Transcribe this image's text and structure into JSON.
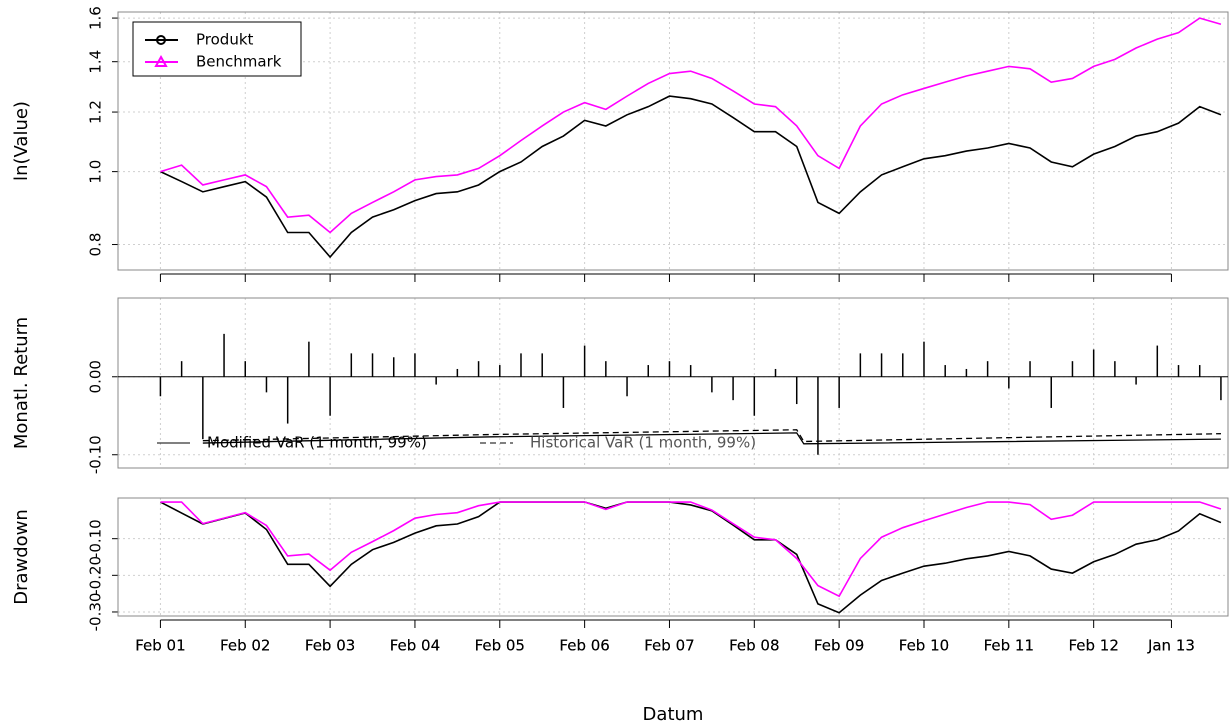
{
  "chart_data": [
    {
      "type": "line",
      "ylabel": "ln(Value)",
      "log_scale": true,
      "grid": true,
      "x": [
        "2001-02",
        "2001-05",
        "2001-08",
        "2001-11",
        "2002-02",
        "2002-05",
        "2002-08",
        "2002-11",
        "2003-02",
        "2003-05",
        "2003-08",
        "2003-11",
        "2004-02",
        "2004-05",
        "2004-08",
        "2004-11",
        "2005-02",
        "2005-05",
        "2005-08",
        "2005-11",
        "2006-02",
        "2006-05",
        "2006-08",
        "2006-11",
        "2007-02",
        "2007-05",
        "2007-08",
        "2007-11",
        "2008-02",
        "2008-05",
        "2008-08",
        "2008-11",
        "2009-02",
        "2009-05",
        "2009-08",
        "2009-11",
        "2010-02",
        "2010-05",
        "2010-08",
        "2010-11",
        "2011-02",
        "2011-05",
        "2011-08",
        "2011-11",
        "2012-02",
        "2012-05",
        "2012-08",
        "2012-11",
        "2013-02",
        "2013-05",
        "2013-08"
      ],
      "xlim": [
        "2000-08",
        "2013-09"
      ],
      "xticks": [
        {
          "value": "2001-02",
          "label": "Feb 01"
        },
        {
          "value": "2002-02",
          "label": "Feb 02"
        },
        {
          "value": "2003-02",
          "label": "Feb 03"
        },
        {
          "value": "2004-02",
          "label": "Feb 04"
        },
        {
          "value": "2005-02",
          "label": "Feb 05"
        },
        {
          "value": "2006-02",
          "label": "Feb 06"
        },
        {
          "value": "2007-02",
          "label": "Feb 07"
        },
        {
          "value": "2008-02",
          "label": "Feb 08"
        },
        {
          "value": "2009-02",
          "label": "Feb 09"
        },
        {
          "value": "2010-02",
          "label": "Feb 10"
        },
        {
          "value": "2011-02",
          "label": "Feb 11"
        },
        {
          "value": "2012-02",
          "label": "Feb 12"
        },
        {
          "value": "2013-01",
          "label": "Jan 13"
        }
      ],
      "ylim": [
        0.74,
        1.63
      ],
      "yticks": [
        0.8,
        {
          "value": 1.0,
          "label": "1.0"
        },
        1.2,
        1.4,
        1.6
      ],
      "legend": "top-left",
      "series": [
        {
          "name": "Produkt",
          "color": "#000000",
          "marker": "circle",
          "values": [
            1.0,
            0.97,
            0.94,
            0.955,
            0.97,
            0.925,
            0.83,
            0.83,
            0.77,
            0.83,
            0.87,
            0.89,
            0.915,
            0.935,
            0.94,
            0.96,
            1.0,
            1.03,
            1.08,
            1.115,
            1.17,
            1.15,
            1.19,
            1.22,
            1.26,
            1.25,
            1.23,
            1.18,
            1.13,
            1.13,
            1.08,
            0.91,
            0.88,
            0.94,
            0.99,
            1.015,
            1.04,
            1.05,
            1.065,
            1.075,
            1.09,
            1.075,
            1.03,
            1.015,
            1.055,
            1.08,
            1.115,
            1.13,
            1.16,
            1.22,
            1.19
          ]
        },
        {
          "name": "Benchmark",
          "color": "#ff00ff",
          "marker": "triangle",
          "values": [
            1.0,
            1.02,
            0.96,
            0.975,
            0.99,
            0.955,
            0.87,
            0.875,
            0.83,
            0.88,
            0.91,
            0.94,
            0.975,
            0.985,
            0.99,
            1.01,
            1.05,
            1.1,
            1.15,
            1.2,
            1.235,
            1.21,
            1.26,
            1.31,
            1.35,
            1.36,
            1.33,
            1.28,
            1.23,
            1.22,
            1.15,
            1.05,
            1.01,
            1.15,
            1.23,
            1.265,
            1.29,
            1.315,
            1.34,
            1.36,
            1.38,
            1.37,
            1.315,
            1.33,
            1.38,
            1.41,
            1.46,
            1.5,
            1.53,
            1.6,
            1.57
          ]
        }
      ]
    },
    {
      "type": "bar",
      "ylabel": "Monatl. Return",
      "grid": true,
      "color": "#000000",
      "x": [
        "2001-02",
        "2001-05",
        "2001-08",
        "2001-11",
        "2002-02",
        "2002-05",
        "2002-08",
        "2002-11",
        "2003-02",
        "2003-05",
        "2003-08",
        "2003-11",
        "2004-02",
        "2004-05",
        "2004-08",
        "2004-11",
        "2005-02",
        "2005-05",
        "2005-08",
        "2005-11",
        "2006-02",
        "2006-05",
        "2006-08",
        "2006-11",
        "2007-02",
        "2007-05",
        "2007-08",
        "2007-11",
        "2008-02",
        "2008-05",
        "2008-08",
        "2008-11",
        "2009-02",
        "2009-05",
        "2009-08",
        "2009-11",
        "2010-02",
        "2010-05",
        "2010-08",
        "2010-11",
        "2011-02",
        "2011-05",
        "2011-08",
        "2011-11",
        "2012-02",
        "2012-05",
        "2012-08",
        "2012-11",
        "2013-02",
        "2013-05",
        "2013-08"
      ],
      "values": [
        -0.025,
        0.02,
        -0.08,
        0.055,
        0.02,
        -0.02,
        -0.06,
        0.045,
        -0.05,
        0.03,
        0.03,
        0.025,
        0.03,
        -0.01,
        0.01,
        0.02,
        0.015,
        0.03,
        0.03,
        -0.04,
        0.04,
        0.02,
        -0.025,
        0.015,
        0.02,
        0.015,
        -0.02,
        -0.03,
        -0.05,
        0.01,
        -0.035,
        -0.1,
        -0.04,
        0.03,
        0.03,
        0.03,
        0.045,
        0.015,
        0.01,
        0.02,
        -0.015,
        0.02,
        -0.04,
        0.02,
        0.035,
        0.02,
        -0.01,
        0.04,
        0.015,
        0.015,
        -0.03
      ],
      "ylim": [
        -0.117,
        0.101
      ],
      "yticks": [
        {
          "value": -0.1,
          "label": "-0.10"
        },
        {
          "value": 0,
          "label": "0.00"
        }
      ],
      "series": [
        {
          "name": "Modified VaR (1 month, 99%)",
          "color": "#000000",
          "dash": "solid",
          "x": [
            "2001-08",
            "2005-01",
            "2008-08",
            "2008-09",
            "2013-08"
          ],
          "values": [
            -0.085,
            -0.077,
            -0.072,
            -0.086,
            -0.08
          ]
        },
        {
          "name": "Historical VaR (1 month, 99%)",
          "color": "#000000",
          "dash": "dashed",
          "x": [
            "2001-08",
            "2005-01",
            "2008-08",
            "2008-09",
            "2013-08"
          ],
          "values": [
            -0.082,
            -0.074,
            -0.068,
            -0.083,
            -0.073
          ]
        }
      ]
    },
    {
      "type": "line",
      "ylabel": "Drawdown",
      "xlabel": "Datum",
      "grid": true,
      "x": [
        "2001-02",
        "2001-05",
        "2001-08",
        "2001-11",
        "2002-02",
        "2002-05",
        "2002-08",
        "2002-11",
        "2003-02",
        "2003-05",
        "2003-08",
        "2003-11",
        "2004-02",
        "2004-05",
        "2004-08",
        "2004-11",
        "2005-02",
        "2005-05",
        "2005-08",
        "2005-11",
        "2006-02",
        "2006-05",
        "2006-08",
        "2006-11",
        "2007-02",
        "2007-05",
        "2007-08",
        "2007-11",
        "2008-02",
        "2008-05",
        "2008-08",
        "2008-11",
        "2009-02",
        "2009-05",
        "2009-08",
        "2009-11",
        "2010-02",
        "2010-05",
        "2010-08",
        "2010-11",
        "2011-02",
        "2011-05",
        "2011-08",
        "2011-11",
        "2012-02",
        "2012-05",
        "2012-08",
        "2012-11",
        "2013-02",
        "2013-05",
        "2013-08"
      ],
      "xticks": [
        {
          "value": "2001-02",
          "label": "Feb 01"
        },
        {
          "value": "2002-02",
          "label": "Feb 02"
        },
        {
          "value": "2003-02",
          "label": "Feb 03"
        },
        {
          "value": "2004-02",
          "label": "Feb 04"
        },
        {
          "value": "2005-02",
          "label": "Feb 05"
        },
        {
          "value": "2006-02",
          "label": "Feb 06"
        },
        {
          "value": "2007-02",
          "label": "Feb 07"
        },
        {
          "value": "2008-02",
          "label": "Feb 08"
        },
        {
          "value": "2009-02",
          "label": "Feb 09"
        },
        {
          "value": "2010-02",
          "label": "Feb 10"
        },
        {
          "value": "2011-02",
          "label": "Feb 11"
        },
        {
          "value": "2012-02",
          "label": "Feb 12"
        },
        {
          "value": "2013-01",
          "label": "Jan 13"
        }
      ],
      "ylim": [
        -0.311,
        0.011
      ],
      "yticks": [
        {
          "value": -0.3,
          "label": "-0.30"
        },
        {
          "value": -0.2,
          "label": "-0.20"
        },
        {
          "value": -0.1,
          "label": "-0.10"
        }
      ],
      "series": [
        {
          "name": "Produkt",
          "color": "#000000",
          "values": [
            0,
            -0.03,
            -0.06,
            -0.045,
            -0.03,
            -0.075,
            -0.17,
            -0.17,
            -0.23,
            -0.17,
            -0.13,
            -0.11,
            -0.085,
            -0.065,
            -0.06,
            -0.04,
            0,
            0,
            0,
            0,
            0,
            -0.017,
            0,
            0,
            0,
            -0.008,
            -0.024,
            -0.063,
            -0.103,
            -0.103,
            -0.143,
            -0.278,
            -0.302,
            -0.254,
            -0.214,
            -0.194,
            -0.175,
            -0.167,
            -0.155,
            -0.147,
            -0.135,
            -0.147,
            -0.183,
            -0.194,
            -0.163,
            -0.143,
            -0.115,
            -0.103,
            -0.079,
            -0.032,
            -0.056
          ]
        },
        {
          "name": "Benchmark",
          "color": "#ff00ff",
          "values": [
            0,
            0,
            -0.059,
            -0.044,
            -0.029,
            -0.064,
            -0.147,
            -0.142,
            -0.186,
            -0.137,
            -0.108,
            -0.078,
            -0.044,
            -0.034,
            -0.029,
            -0.01,
            0,
            0,
            0,
            0,
            0,
            -0.02,
            0,
            0,
            0,
            0,
            -0.022,
            -0.059,
            -0.096,
            -0.103,
            -0.154,
            -0.228,
            -0.257,
            -0.154,
            -0.096,
            -0.07,
            -0.051,
            -0.033,
            -0.015,
            0,
            0,
            -0.007,
            -0.047,
            -0.036,
            0,
            0,
            0,
            0,
            0,
            0,
            -0.019
          ]
        }
      ]
    }
  ]
}
